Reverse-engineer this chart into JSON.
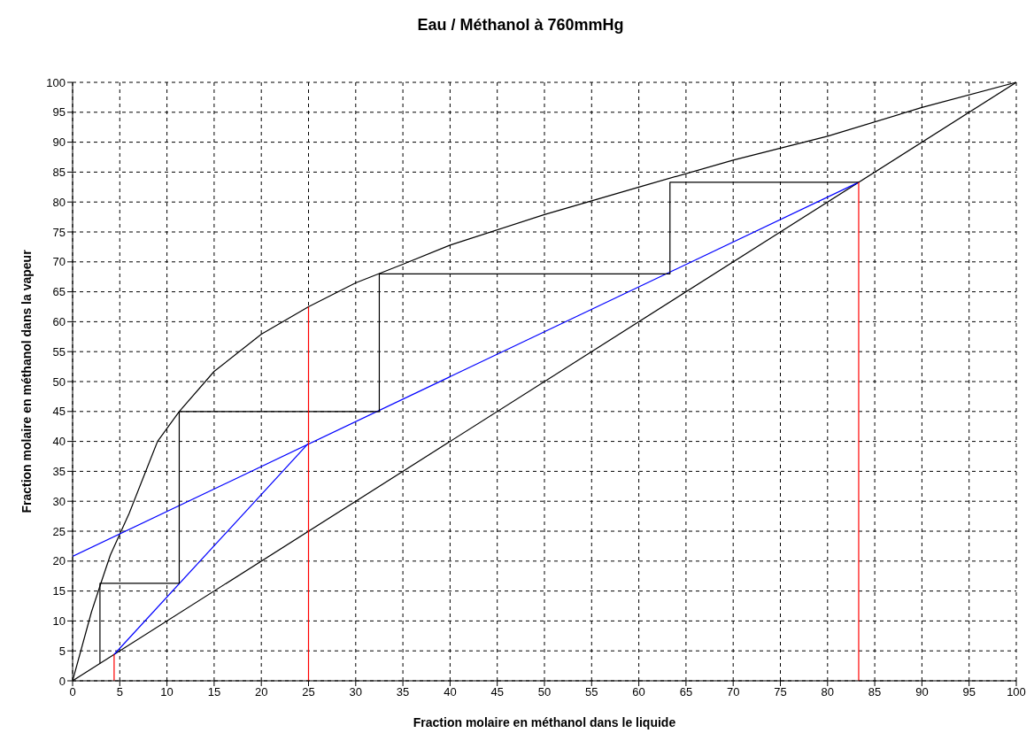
{
  "chart_data": {
    "type": "line",
    "title": "Eau / Méthanol à 760mmHg",
    "xlabel": "Fraction molaire en méthanol dans le liquide",
    "ylabel": "Fraction molaire en méthanol dans la vapeur",
    "xlim": [
      0,
      100
    ],
    "ylim": [
      0,
      100
    ],
    "xticks": [
      0,
      5,
      10,
      15,
      20,
      25,
      30,
      35,
      40,
      45,
      50,
      55,
      60,
      65,
      70,
      75,
      80,
      85,
      90,
      95,
      100
    ],
    "yticks": [
      0,
      5,
      10,
      15,
      20,
      25,
      30,
      35,
      40,
      45,
      50,
      55,
      60,
      65,
      70,
      75,
      80,
      85,
      90,
      95,
      100
    ],
    "grid": true,
    "marker": "none",
    "line_style": "solid",
    "series": [
      {
        "color": "#000000",
        "x": [
          0,
          2,
          3,
          4,
          6,
          9,
          11.3,
          15,
          20,
          25,
          30,
          35,
          40,
          50,
          60,
          70,
          80,
          90,
          100
        ],
        "values": [
          0,
          11.5,
          16.3,
          21,
          28,
          40,
          45,
          51.7,
          57.9,
          62.5,
          66.5,
          69.6,
          72.8,
          77.9,
          82.5,
          87,
          91,
          95.8,
          100
        ]
      },
      {
        "color": "#000000",
        "x": [
          0,
          100
        ],
        "values": [
          0,
          100
        ]
      },
      {
        "color": "#0000ff",
        "x": [
          0,
          83.3
        ],
        "values": [
          20.8,
          83.3
        ]
      },
      {
        "color": "#0000ff",
        "x": [
          4.4,
          25
        ],
        "values": [
          4.4,
          39.7
        ]
      },
      {
        "color": "#000000",
        "x": [
          83.3,
          63.3,
          63.3,
          32.5,
          32.5,
          11.3,
          11.3,
          2.9,
          2.9
        ],
        "values": [
          83.3,
          83.3,
          68,
          68,
          45,
          45,
          16.3,
          16.3,
          2.9
        ]
      },
      {
        "color": "#ff0000",
        "x": [
          4.4,
          4.4
        ],
        "values": [
          0,
          4.4
        ]
      },
      {
        "color": "#ff0000",
        "x": [
          25,
          25
        ],
        "values": [
          0,
          62.5
        ]
      },
      {
        "color": "#ff0000",
        "x": [
          83.3,
          83.3
        ],
        "values": [
          0,
          83.3
        ]
      }
    ]
  }
}
